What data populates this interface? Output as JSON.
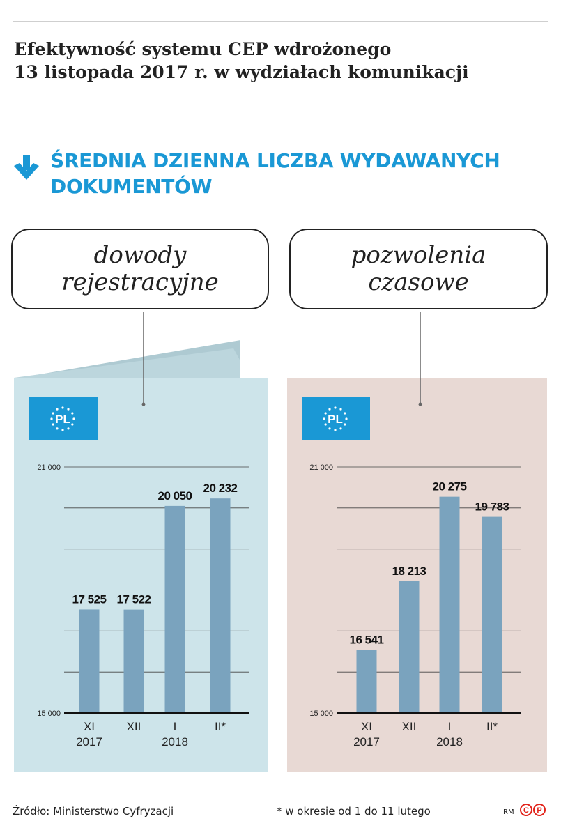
{
  "title": [
    "Efektywność systemu CEP wdrożonego",
    "13 listopada 2017 r. w wydziałach komunikacji"
  ],
  "subtitle": [
    "ŚREDNIA DZIENNA LICZBA WYDAWANYCH",
    "DOKUMENTÓW"
  ],
  "colors": {
    "accent": "#1a98d5",
    "bar": "#7aa3be",
    "panel_left": "#cde4ea",
    "panel_right": "#e8d9d4",
    "flag": "#1a98d5"
  },
  "icons": {
    "subtitle": "arrow-down-icon",
    "flag": "eu-pl-badge-icon",
    "logo": "cp-logo-icon"
  },
  "panels": [
    {
      "label_lines": [
        "dowody",
        "rejestracyjne"
      ],
      "flag_text": "PL"
    },
    {
      "label_lines": [
        "pozwolenia",
        "czasowe"
      ],
      "flag_text": "PL"
    }
  ],
  "chart_data": [
    {
      "type": "bar",
      "title": "dowody rejestracyjne",
      "categories": [
        "XI",
        "XII",
        "I",
        "II*"
      ],
      "year_labels": [
        "2017",
        "",
        "2018",
        ""
      ],
      "values": [
        17525,
        17522,
        20050,
        20232
      ],
      "value_labels": [
        "17 525",
        "17 522",
        "20 050",
        "20 232"
      ],
      "ylim": [
        15000,
        21000
      ],
      "ytick_labels": [
        "15 000",
        "21 000"
      ],
      "grid": true
    },
    {
      "type": "bar",
      "title": "pozwolenia czasowe",
      "categories": [
        "XI",
        "XII",
        "I",
        "II*"
      ],
      "year_labels": [
        "2017",
        "",
        "2018",
        ""
      ],
      "values": [
        16541,
        18213,
        20275,
        19783
      ],
      "value_labels": [
        "16 541",
        "18 213",
        "20 275",
        "19 783"
      ],
      "ylim": [
        15000,
        21000
      ],
      "ytick_labels": [
        "15 000",
        "21 000"
      ],
      "grid": true
    }
  ],
  "footer": {
    "source": "Źródło: Ministerstwo Cyfryzacji",
    "note": "* w okresie od 1 do 11 lutego",
    "author": "RM"
  }
}
